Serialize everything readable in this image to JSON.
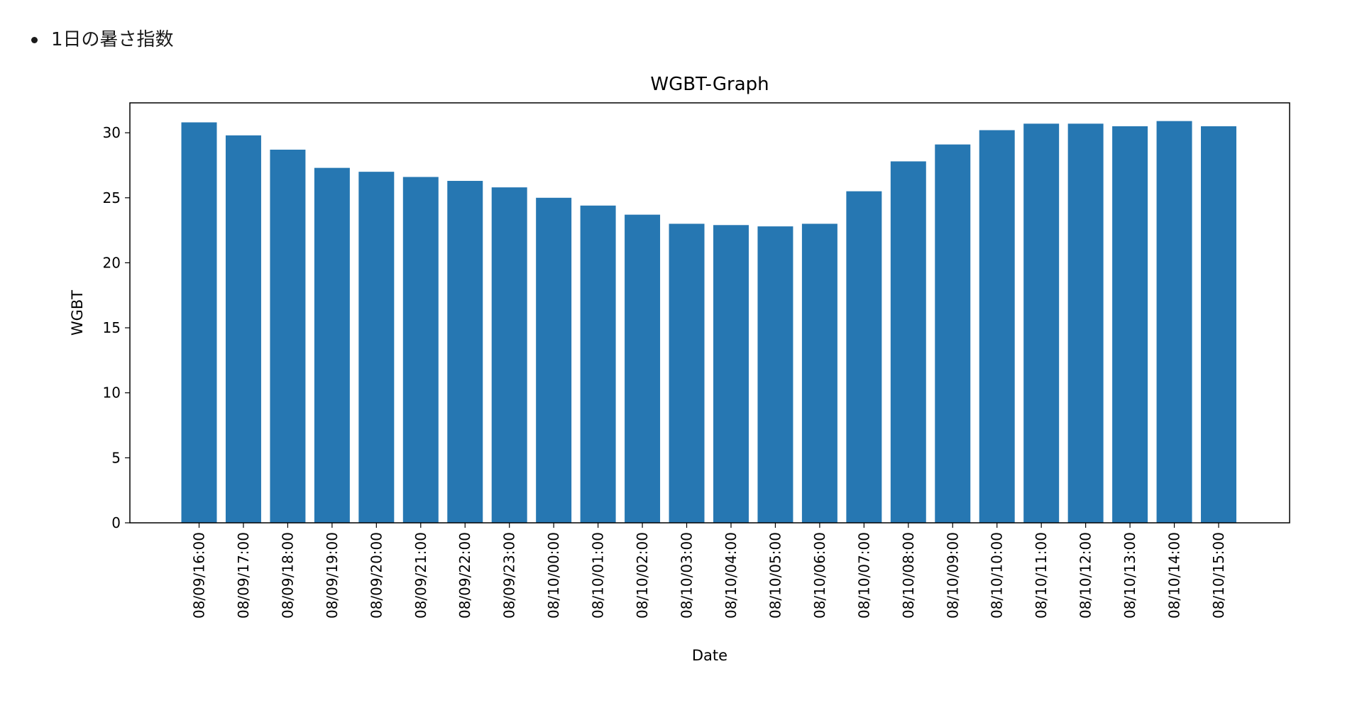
{
  "heading": {
    "bullet_text": "1日の暑さ指数"
  },
  "chart_data": {
    "type": "bar",
    "title": "WGBT-Graph",
    "xlabel": "Date",
    "ylabel": "WGBT",
    "ylim": [
      0,
      32.3
    ],
    "yticks": [
      0,
      5,
      10,
      15,
      20,
      25,
      30
    ],
    "grid": false,
    "bar_color": "#2677b2",
    "categories": [
      "08/09/16:00",
      "08/09/17:00",
      "08/09/18:00",
      "08/09/19:00",
      "08/09/20:00",
      "08/09/21:00",
      "08/09/22:00",
      "08/09/23:00",
      "08/10/00:00",
      "08/10/01:00",
      "08/10/02:00",
      "08/10/03:00",
      "08/10/04:00",
      "08/10/05:00",
      "08/10/06:00",
      "08/10/07:00",
      "08/10/08:00",
      "08/10/09:00",
      "08/10/10:00",
      "08/10/11:00",
      "08/10/12:00",
      "08/10/13:00",
      "08/10/14:00",
      "08/10/15:00"
    ],
    "values": [
      30.8,
      29.8,
      28.7,
      27.3,
      27.0,
      26.6,
      26.3,
      25.8,
      25.0,
      24.4,
      23.7,
      23.0,
      22.9,
      22.8,
      23.0,
      25.5,
      27.8,
      29.1,
      30.2,
      30.7,
      30.7,
      30.5,
      30.9,
      30.5
    ]
  }
}
